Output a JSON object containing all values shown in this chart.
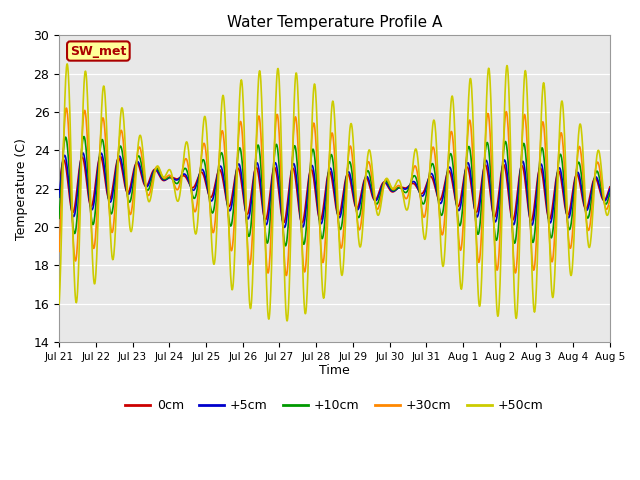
{
  "title": "Water Temperature Profile A",
  "xlabel": "Time",
  "ylabel": "Temperature (C)",
  "ylim": [
    14,
    30
  ],
  "yticks": [
    14,
    16,
    18,
    20,
    22,
    24,
    26,
    28,
    30
  ],
  "x_labels": [
    "Jul 21",
    "Jul 22",
    "Jul 23",
    "Jul 24",
    "Jul 25",
    "Jul 26",
    "Jul 27",
    "Jul 28",
    "Jul 29",
    "Jul 30",
    "Jul 31",
    "Aug 1",
    "Aug 2",
    "Aug 3",
    "Aug 4",
    "Aug 5"
  ],
  "legend_labels": [
    "0cm",
    "+5cm",
    "+10cm",
    "+30cm",
    "+50cm"
  ],
  "legend_colors": [
    "#cc0000",
    "#0000cc",
    "#009900",
    "#ff8800",
    "#cccc00"
  ],
  "annotation_text": "SW_met",
  "annotation_bg": "#ffff99",
  "annotation_fg": "#aa0000",
  "annotation_border": "#aa0000",
  "bg_color": "#e8e8e8",
  "line_width": 1.2,
  "n_days": 15,
  "base_temp": 22.0,
  "amp_0cm": 1.2,
  "amp_5cm": 1.4,
  "amp_10cm": 2.2,
  "amp_30cm": 3.5,
  "amp_50cm": 5.5,
  "phase_0cm": 0.0,
  "phase_5cm": 0.3,
  "phase_10cm": 0.7,
  "phase_30cm": 1.0,
  "phase_50cm": 1.3,
  "tide1_period": 0.52,
  "tide2_period": 0.48,
  "slow_amp": 0.4,
  "slow_period": 8.0
}
